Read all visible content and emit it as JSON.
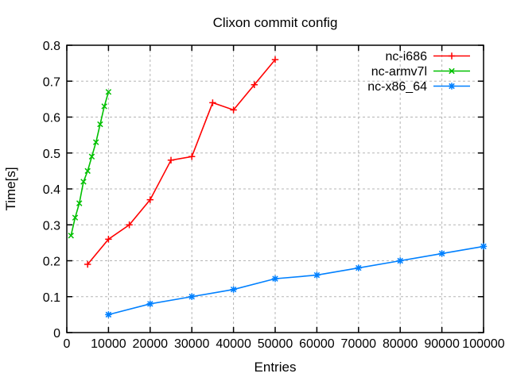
{
  "window": {
    "background": "#ffffff"
  },
  "chart_data": {
    "type": "line",
    "title": "Clixon commit config",
    "xlabel": "Entries",
    "ylabel": "Time[s]",
    "xlim": [
      0,
      100000
    ],
    "ylim": [
      0,
      0.8
    ],
    "grid": true,
    "x_ticks": {
      "values": [
        0,
        10000,
        20000,
        30000,
        40000,
        50000,
        60000,
        70000,
        80000,
        90000,
        100000
      ],
      "labels": [
        "0",
        "10000",
        "20000",
        "30000",
        "40000",
        "50000",
        "60000",
        "70000",
        "80000",
        "90000",
        "100000"
      ]
    },
    "y_ticks": {
      "values": [
        0,
        0.1,
        0.2,
        0.3,
        0.4,
        0.5,
        0.6,
        0.7,
        0.8
      ],
      "labels": [
        "0",
        "0.1",
        "0.2",
        "0.3",
        "0.4",
        "0.5",
        "0.6",
        "0.7",
        "0.8"
      ]
    },
    "legend": {
      "position": "top-right-inside"
    },
    "series": [
      {
        "name": "nc-i686",
        "color": "#ff0000",
        "marker": "plus",
        "x": [
          5000,
          10000,
          15000,
          20000,
          25000,
          30000,
          35000,
          40000,
          45000,
          50000
        ],
        "y": [
          0.19,
          0.26,
          0.3,
          0.37,
          0.48,
          0.49,
          0.64,
          0.62,
          0.69,
          0.76
        ]
      },
      {
        "name": "nc-armv7l",
        "color": "#00c000",
        "marker": "cross",
        "x": [
          1000,
          2000,
          3000,
          4000,
          5000,
          6000,
          7000,
          8000,
          9000,
          10000
        ],
        "y": [
          0.27,
          0.32,
          0.36,
          0.42,
          0.45,
          0.49,
          0.53,
          0.58,
          0.63,
          0.67
        ]
      },
      {
        "name": "nc-x86_64",
        "color": "#0080ff",
        "marker": "asterisk",
        "x": [
          10000,
          20000,
          30000,
          40000,
          50000,
          60000,
          70000,
          80000,
          90000,
          100000
        ],
        "y": [
          0.05,
          0.08,
          0.1,
          0.12,
          0.15,
          0.16,
          0.18,
          0.2,
          0.22,
          0.24
        ]
      }
    ]
  },
  "colors": {
    "axis": "#000000",
    "grid": "#b5b5b5",
    "text": "#000000"
  }
}
